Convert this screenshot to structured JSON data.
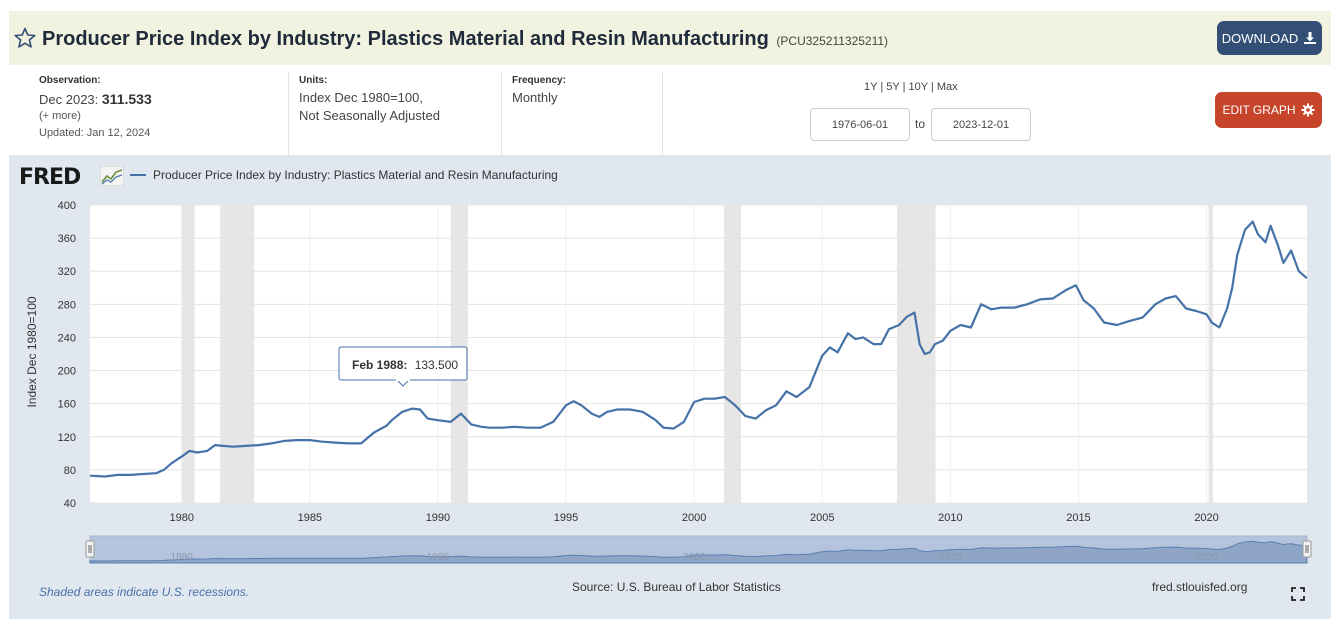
{
  "header": {
    "title": "Producer Price Index by Industry: Plastics Material and Resin Manufacturing",
    "series_id": "(PCU325211325211)",
    "download_label": "DOWNLOAD",
    "star_icon": "star-outline-icon",
    "download_icon": "download-icon"
  },
  "meta": {
    "observation_label": "Observation:",
    "observation_date": "Dec 2023:",
    "observation_value": "311.533",
    "more_label": "(+ more)",
    "updated": "Updated: Jan 12, 2024",
    "units_label": "Units:",
    "units_line1": "Index Dec 1980=100,",
    "units_line2": "Not Seasonally Adjusted",
    "frequency_label": "Frequency:",
    "frequency_value": "Monthly",
    "range_links": [
      "1Y",
      "5Y",
      "10Y",
      "Max"
    ],
    "start_date": "1976-06-01",
    "to_label": "to",
    "end_date": "2023-12-01",
    "edit_label": "EDIT GRAPH",
    "edit_icon": "gear-icon"
  },
  "chart_meta": {
    "logo": "FRED",
    "legend_label": "Producer Price Index by Industry: Plastics Material and Resin Manufacturing",
    "tooltip_date": "Feb 1988:",
    "tooltip_value": "133.500",
    "footer_note": "Shaded areas indicate U.S. recessions.",
    "source": "Source: U.S. Bureau of Labor Statistics",
    "site": "fred.stlouisfed.org",
    "line_color": "#4572a7",
    "recession_color": "#e6e6e6"
  },
  "chart_data": {
    "type": "line",
    "title": "",
    "xlabel": "",
    "ylabel": "Index Dec 1980=100",
    "xlim": [
      1976.42,
      2023.92
    ],
    "ylim": [
      40,
      400
    ],
    "yticks": [
      40,
      80,
      120,
      160,
      200,
      240,
      280,
      320,
      360,
      400
    ],
    "xticks": [
      1980,
      1985,
      1990,
      1995,
      2000,
      2005,
      2010,
      2015,
      2020
    ],
    "navigator_ticks": [
      1980,
      1990,
      2000,
      2010,
      2020
    ],
    "grid": true,
    "recessions": [
      [
        1980.0,
        1980.5
      ],
      [
        1981.5,
        1982.83
      ],
      [
        1990.5,
        1991.17
      ],
      [
        2001.17,
        2001.83
      ],
      [
        2007.92,
        2009.42
      ],
      [
        2020.08,
        2020.25
      ]
    ],
    "series": [
      {
        "name": "Producer Price Index by Industry: Plastics Material and Resin Manufacturing",
        "x": [
          1976.42,
          1977.0,
          1977.5,
          1978.0,
          1978.5,
          1979.0,
          1979.3,
          1979.6,
          1980.0,
          1980.3,
          1980.6,
          1981.0,
          1981.3,
          1981.6,
          1982.0,
          1982.5,
          1983.0,
          1983.5,
          1984.0,
          1984.5,
          1985.0,
          1985.5,
          1986.0,
          1986.5,
          1987.0,
          1987.5,
          1988.0,
          1988.2,
          1988.6,
          1989.0,
          1989.3,
          1989.6,
          1990.0,
          1990.5,
          1990.9,
          1991.3,
          1991.7,
          1992.0,
          1992.5,
          1993.0,
          1993.5,
          1994.0,
          1994.5,
          1995.0,
          1995.3,
          1995.6,
          1996.0,
          1996.3,
          1996.6,
          1997.0,
          1997.5,
          1998.0,
          1998.5,
          1998.8,
          1999.2,
          1999.6,
          2000.0,
          2000.4,
          2000.8,
          2001.2,
          2001.6,
          2002.0,
          2002.4,
          2002.8,
          2003.2,
          2003.6,
          2004.0,
          2004.5,
          2005.0,
          2005.3,
          2005.6,
          2006.0,
          2006.3,
          2006.6,
          2007.0,
          2007.3,
          2007.6,
          2008.0,
          2008.3,
          2008.6,
          2008.8,
          2009.0,
          2009.2,
          2009.4,
          2009.7,
          2010.0,
          2010.4,
          2010.8,
          2011.2,
          2011.6,
          2012.0,
          2012.5,
          2013.0,
          2013.5,
          2014.0,
          2014.5,
          2014.9,
          2015.2,
          2015.6,
          2016.0,
          2016.5,
          2017.0,
          2017.5,
          2018.0,
          2018.4,
          2018.8,
          2019.2,
          2019.6,
          2020.0,
          2020.2,
          2020.5,
          2020.8,
          2021.0,
          2021.2,
          2021.5,
          2021.8,
          2022.0,
          2022.3,
          2022.5,
          2022.8,
          2023.0,
          2023.3,
          2023.6,
          2023.92
        ],
        "values": [
          73,
          72,
          74,
          74,
          75,
          76,
          80,
          88,
          96,
          103,
          101,
          103,
          110,
          109,
          108,
          109,
          110,
          112,
          115,
          116,
          116,
          114,
          113,
          112,
          112,
          125,
          133.5,
          140,
          150,
          154,
          153,
          142,
          140,
          138,
          148,
          135,
          132,
          131,
          131,
          132,
          131,
          131,
          138,
          158,
          163,
          158,
          148,
          144,
          150,
          153,
          153,
          150,
          140,
          131,
          130,
          138,
          162,
          166,
          166,
          168,
          158,
          145,
          142,
          152,
          158,
          175,
          168,
          180,
          218,
          228,
          222,
          245,
          238,
          240,
          232,
          232,
          250,
          255,
          265,
          270,
          232,
          220,
          222,
          232,
          236,
          248,
          255,
          252,
          280,
          274,
          276,
          276,
          280,
          286,
          287,
          297,
          303,
          285,
          275,
          258,
          255,
          260,
          264,
          280,
          287,
          290,
          275,
          272,
          268,
          258,
          252,
          275,
          300,
          340,
          370,
          380,
          365,
          355,
          375,
          350,
          330,
          345,
          320,
          311.5
        ]
      }
    ]
  }
}
